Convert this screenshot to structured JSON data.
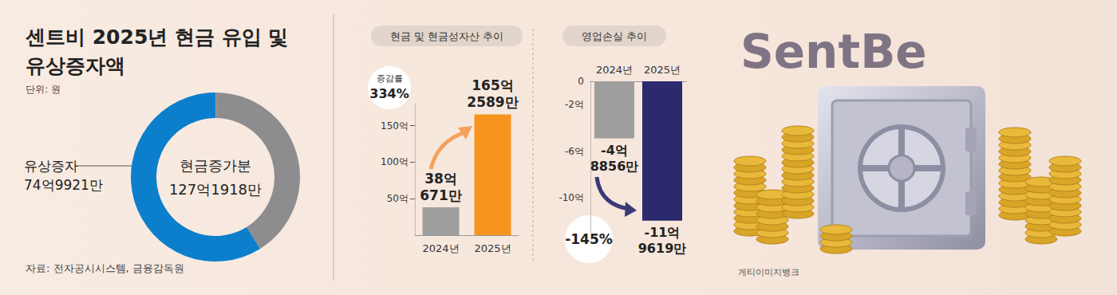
{
  "chart_data": [
    {
      "type": "pie",
      "title": "센트비 2025년 현금 유입 및 유상증자액",
      "subtitle": "단위: 원",
      "categories": [
        "유상증자",
        null
      ],
      "values": [
        7499210000,
        5219970000
      ],
      "value_labels": [
        "74억9921만",
        null
      ],
      "colors": [
        "#0b7fcc",
        "#8d8d8f"
      ],
      "center_label": "현금증가분",
      "center_value": 12719180000,
      "center_value_label": "127억1918만",
      "source": "자료: 전자공시시스템, 금융감독원"
    },
    {
      "type": "bar",
      "title": "현금 및 현금성자산 추이",
      "categories": [
        "2024년",
        "2025년"
      ],
      "values": [
        38.0671,
        165.2589
      ],
      "value_labels": [
        "38억 671만",
        "165억 2589만"
      ],
      "colors": [
        "#9e9e9e",
        "#f7941d"
      ],
      "ylim": [
        0,
        180
      ],
      "yticks": [
        {
          "value": 50,
          "label": "50억"
        },
        {
          "value": 100,
          "label": "100억"
        },
        {
          "value": 150,
          "label": "150억"
        }
      ],
      "grid": false,
      "data_labels": true,
      "annotation": {
        "label": "증감률",
        "value": 334,
        "value_label": "334%"
      }
    },
    {
      "type": "bar",
      "title": "영업손실 추이",
      "categories": [
        "2024년",
        "2025년"
      ],
      "values": [
        -4.8856,
        -11.9619
      ],
      "value_labels": [
        "-4억 8856만",
        "-11억 9619만"
      ],
      "colors": [
        "#9e9e9e",
        "#2b2a6e"
      ],
      "ylim": [
        -13,
        0
      ],
      "yticks": [
        0,
        {
          "value": -2,
          "label": "-2억"
        },
        {
          "value": -6,
          "label": "-6억"
        },
        {
          "value": -10,
          "label": "-10억"
        }
      ],
      "grid": false,
      "data_labels": true,
      "annotation": {
        "value": -145,
        "value_label": "-145%"
      }
    }
  ],
  "logo": "SentBe",
  "image_credit": "게티이미지뱅크"
}
